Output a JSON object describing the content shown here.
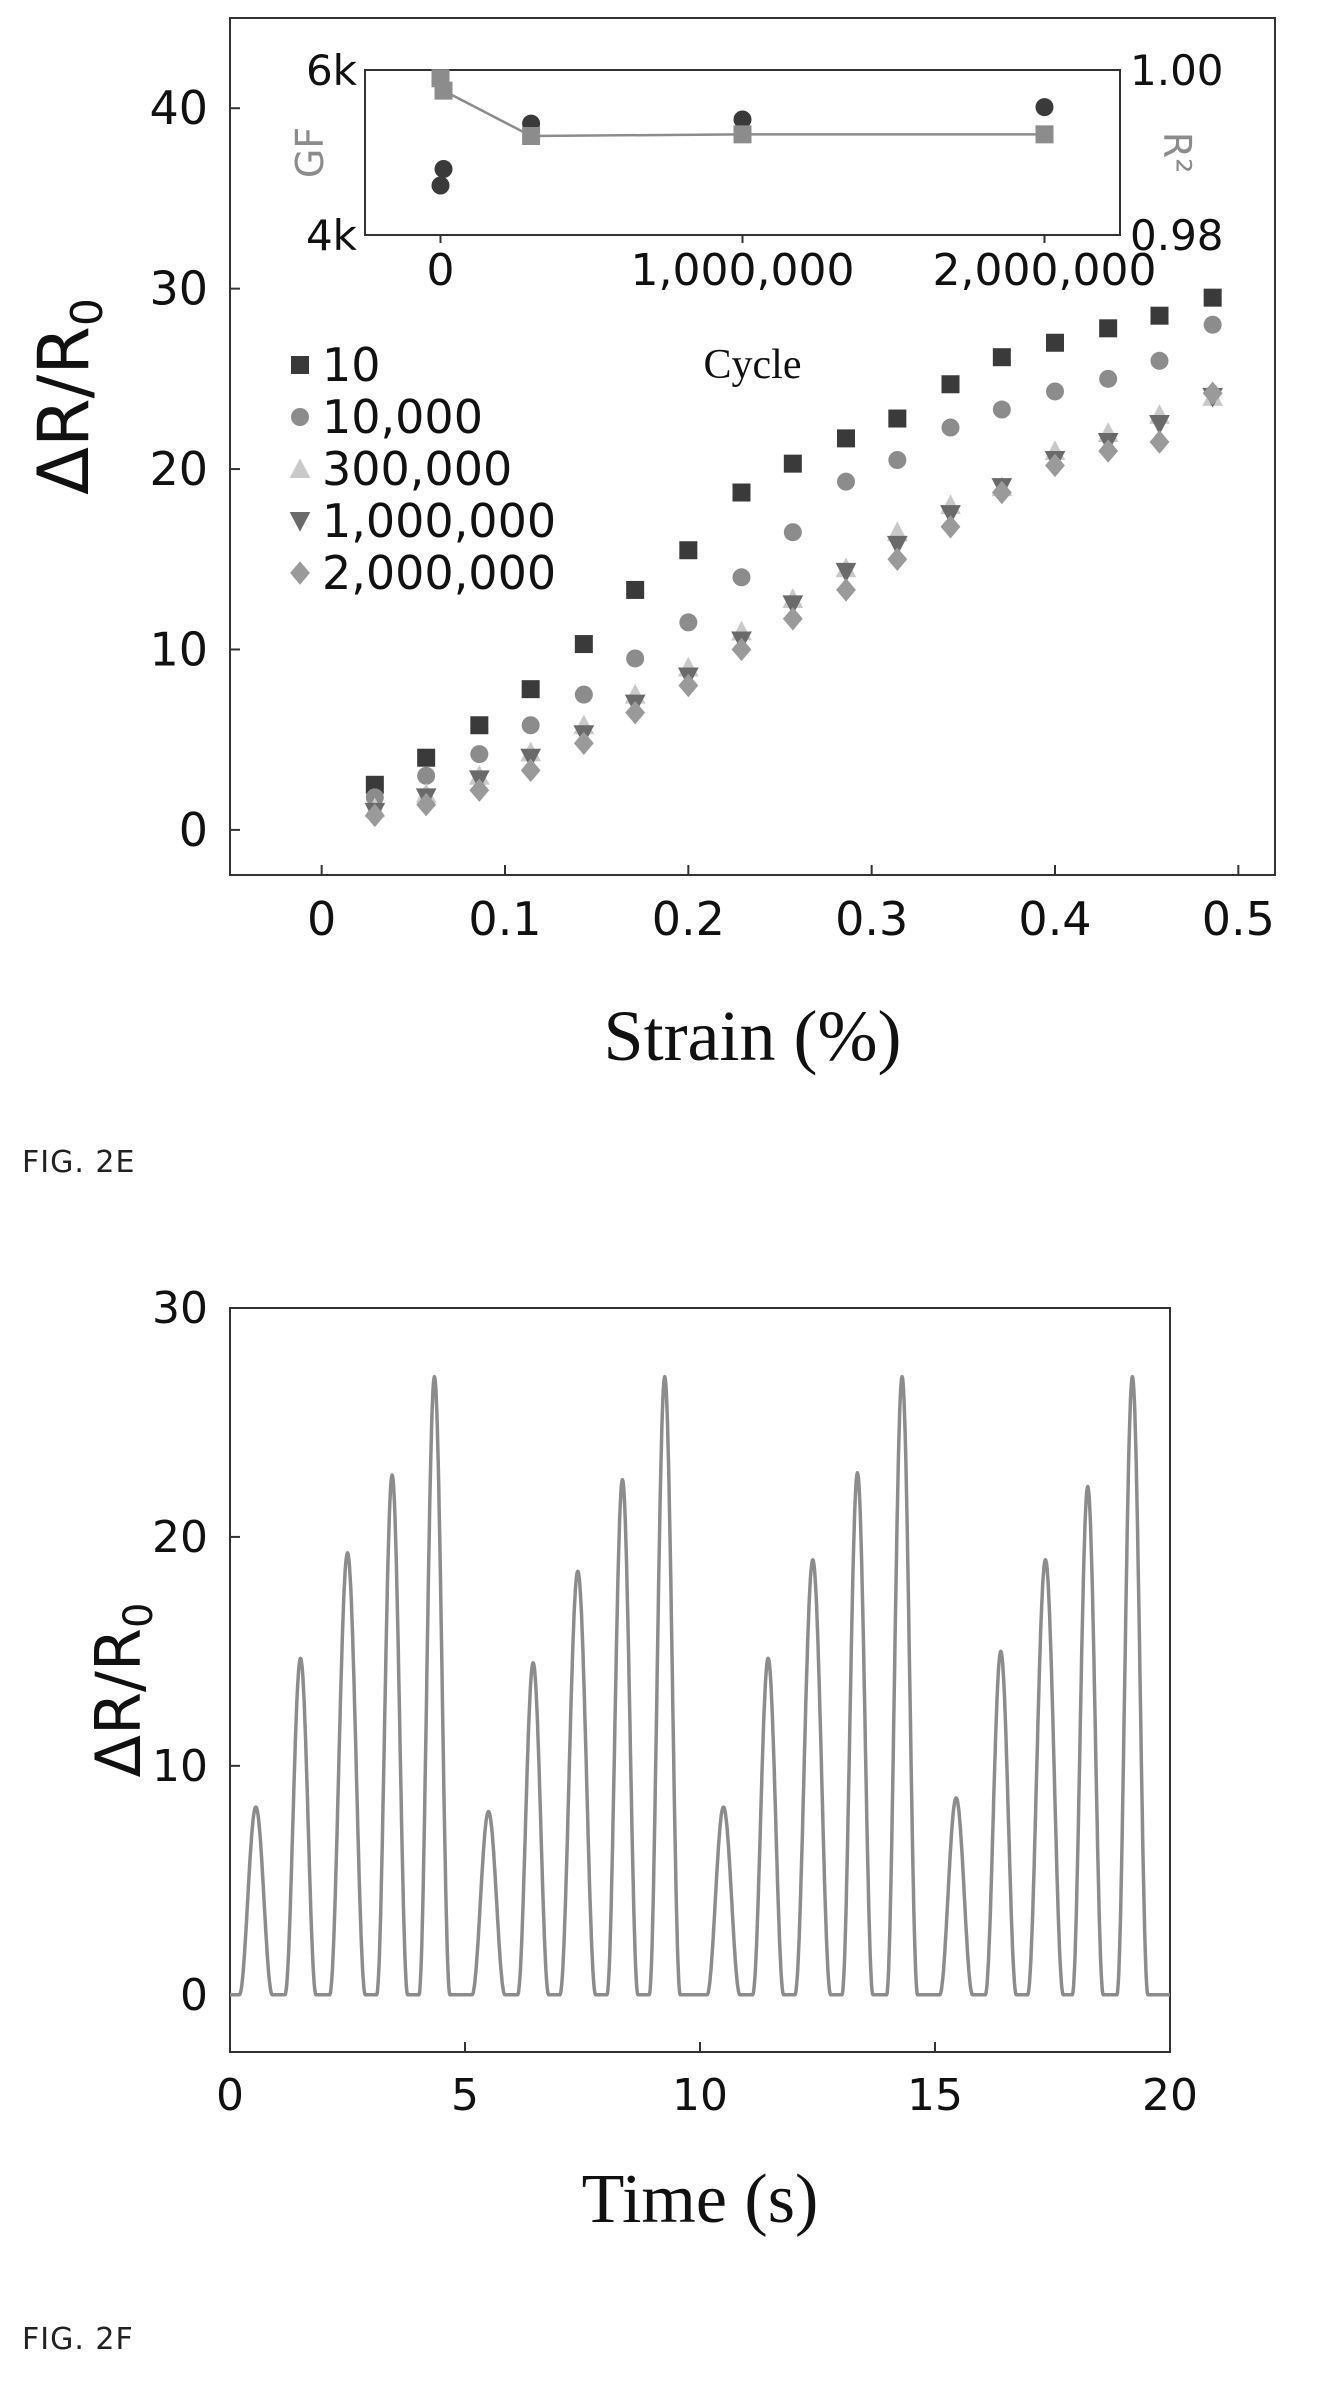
{
  "figures": [
    {
      "label": "FIG. 2E"
    },
    {
      "label": "FIG. 2F"
    }
  ],
  "chart_data": [
    {
      "type": "scatter",
      "title": "",
      "xlabel": "Strain (%)",
      "ylabel_main": "ΔR/R",
      "ylabel_sub": "0",
      "xlim": [
        -0.05,
        0.52
      ],
      "ylim": [
        -2.5,
        45
      ],
      "xticks": [
        0,
        0.1,
        0.2,
        0.3,
        0.4,
        0.5
      ],
      "xtick_labels": [
        "0",
        "0.1",
        "0.2",
        "0.3",
        "0.4",
        "0.5"
      ],
      "yticks": [
        0,
        10,
        20,
        30,
        40
      ],
      "ytick_labels": [
        "0",
        "10",
        "20",
        "30",
        "40"
      ],
      "grid": false,
      "legend_position": "left",
      "colors": {
        "s10": "#3a3a3a",
        "s10000": "#8c8c8c",
        "s300000": "#c9c9c9",
        "s1000000": "#6a6a6a",
        "s2000000": "#9a9a9a"
      },
      "series": [
        {
          "name": "10",
          "marker": "square",
          "color": "#3a3a3a",
          "x": [
            0.029,
            0.057,
            0.086,
            0.114,
            0.143,
            0.171,
            0.2,
            0.229,
            0.257,
            0.286,
            0.314,
            0.343,
            0.371,
            0.4,
            0.429,
            0.457,
            0.486
          ],
          "y": [
            2.5,
            4.0,
            5.8,
            7.8,
            10.3,
            13.3,
            15.5,
            18.7,
            20.3,
            21.7,
            22.8,
            24.7,
            26.2,
            27.0,
            27.8,
            28.5,
            29.5
          ]
        },
        {
          "name": "10,000",
          "marker": "circle",
          "color": "#8c8c8c",
          "x": [
            0.029,
            0.057,
            0.086,
            0.114,
            0.143,
            0.171,
            0.2,
            0.229,
            0.257,
            0.286,
            0.314,
            0.343,
            0.371,
            0.4,
            0.429,
            0.457,
            0.486
          ],
          "y": [
            1.8,
            3.0,
            4.2,
            5.8,
            7.5,
            9.5,
            11.5,
            14.0,
            16.5,
            19.3,
            20.5,
            22.3,
            23.3,
            24.3,
            25.0,
            26.0,
            28.0
          ]
        },
        {
          "name": "300,000",
          "marker": "triangle-up",
          "color": "#c9c9c9",
          "x": [
            0.029,
            0.057,
            0.086,
            0.114,
            0.143,
            0.171,
            0.2,
            0.229,
            0.257,
            0.286,
            0.314,
            0.343,
            0.371,
            0.4,
            0.429,
            0.457,
            0.486
          ],
          "y": [
            1.2,
            2.0,
            3.0,
            4.3,
            5.8,
            7.5,
            9.0,
            11.0,
            12.8,
            14.5,
            16.5,
            18.0,
            19.0,
            21.0,
            22.0,
            23.0,
            24.0
          ]
        },
        {
          "name": "1,000,000",
          "marker": "triangle-down",
          "color": "#6a6a6a",
          "x": [
            0.029,
            0.057,
            0.086,
            0.114,
            0.143,
            0.171,
            0.2,
            0.229,
            0.257,
            0.286,
            0.314,
            0.343,
            0.371,
            0.4,
            0.429,
            0.457,
            0.486
          ],
          "y": [
            1.0,
            1.8,
            2.8,
            4.0,
            5.3,
            7.0,
            8.5,
            10.5,
            12.5,
            14.3,
            15.8,
            17.5,
            19.0,
            20.5,
            21.5,
            22.5,
            24.0
          ]
        },
        {
          "name": "2,000,000",
          "marker": "diamond",
          "color": "#9a9a9a",
          "x": [
            0.029,
            0.057,
            0.086,
            0.114,
            0.143,
            0.171,
            0.2,
            0.229,
            0.257,
            0.286,
            0.314,
            0.343,
            0.371,
            0.4,
            0.429,
            0.457,
            0.486
          ],
          "y": [
            0.8,
            1.4,
            2.2,
            3.3,
            4.8,
            6.5,
            8.0,
            10.0,
            11.7,
            13.3,
            15.0,
            16.8,
            18.7,
            20.2,
            21.0,
            21.5,
            24.2
          ]
        }
      ],
      "inset": {
        "type": "scatter",
        "xlabel": "Cycle",
        "ylabel_left": "GF",
        "ylabel_right": "R²",
        "xlim": [
          -250000,
          2250000
        ],
        "xticks": [
          0,
          1000000,
          2000000
        ],
        "xtick_labels": [
          "0",
          "1,000,000",
          "2,000,000"
        ],
        "ylim_left": [
          4000,
          6000
        ],
        "yticks_left": [
          4000,
          6000
        ],
        "ytick_labels_left": [
          "4k",
          "6k"
        ],
        "ylim_right": [
          0.98,
          1.0
        ],
        "yticks_right": [
          0.98,
          1.0
        ],
        "ytick_labels_right": [
          "0.98",
          "1.00"
        ],
        "series": [
          {
            "axis": "left",
            "marker": "circle",
            "color": "#3a3a3a",
            "x": [
              10,
              10000,
              300000,
              1000000,
              2000000
            ],
            "y": [
              4600,
              4800,
              5350,
              5400,
              5550
            ]
          },
          {
            "axis": "right",
            "marker": "square",
            "line": true,
            "color": "#8c8c8c",
            "x": [
              10,
              10000,
              300000,
              1000000,
              2000000
            ],
            "y": [
              0.999,
              0.9975,
              0.992,
              0.9922,
              0.9922
            ]
          }
        ]
      }
    },
    {
      "type": "line",
      "title": "",
      "xlabel": "Time (s)",
      "ylabel_main": "ΔR/R",
      "ylabel_sub": "0",
      "xlim": [
        0,
        20
      ],
      "ylim": [
        -2.5,
        30
      ],
      "xticks": [
        0,
        5,
        10,
        15,
        20
      ],
      "xtick_labels": [
        "0",
        "5",
        "10",
        "15",
        "20"
      ],
      "yticks": [
        0,
        10,
        20,
        30
      ],
      "ytick_labels": [
        "0",
        "10",
        "20",
        "30"
      ],
      "grid": false,
      "line_color": "#8c8c8c",
      "pulses": [
        {
          "center": 0.55,
          "peak": 8.2,
          "halfwidth": 0.35
        },
        {
          "center": 1.5,
          "peak": 14.7,
          "halfwidth": 0.33
        },
        {
          "center": 2.5,
          "peak": 19.3,
          "halfwidth": 0.38
        },
        {
          "center": 3.45,
          "peak": 22.7,
          "halfwidth": 0.33
        },
        {
          "center": 4.35,
          "peak": 27.0,
          "halfwidth": 0.33
        },
        {
          "center": 5.5,
          "peak": 8.0,
          "halfwidth": 0.35
        },
        {
          "center": 6.45,
          "peak": 14.5,
          "halfwidth": 0.33
        },
        {
          "center": 7.4,
          "peak": 18.5,
          "halfwidth": 0.38
        },
        {
          "center": 8.35,
          "peak": 22.5,
          "halfwidth": 0.33
        },
        {
          "center": 9.25,
          "peak": 27.0,
          "halfwidth": 0.33
        },
        {
          "center": 10.5,
          "peak": 8.2,
          "halfwidth": 0.35
        },
        {
          "center": 11.45,
          "peak": 14.7,
          "halfwidth": 0.33
        },
        {
          "center": 12.4,
          "peak": 19.0,
          "halfwidth": 0.38
        },
        {
          "center": 13.35,
          "peak": 22.8,
          "halfwidth": 0.33
        },
        {
          "center": 14.3,
          "peak": 27.0,
          "halfwidth": 0.33
        },
        {
          "center": 15.45,
          "peak": 8.6,
          "halfwidth": 0.35
        },
        {
          "center": 16.4,
          "peak": 15.0,
          "halfwidth": 0.33
        },
        {
          "center": 17.35,
          "peak": 19.0,
          "halfwidth": 0.38
        },
        {
          "center": 18.25,
          "peak": 22.2,
          "halfwidth": 0.33
        },
        {
          "center": 19.2,
          "peak": 27.0,
          "halfwidth": 0.33
        }
      ]
    }
  ]
}
